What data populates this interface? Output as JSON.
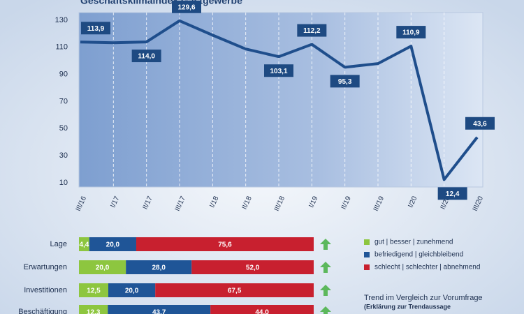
{
  "chart_data": [
    {
      "type": "line",
      "title": "Geschäftsklimaindex Gastgewerbe",
      "categories": [
        "III/16",
        "I/17",
        "II/17",
        "III/17",
        "I/18",
        "II/18",
        "III/18",
        "I/19",
        "II/19",
        "III/19",
        "I/20",
        "II/20",
        "III/20"
      ],
      "values": [
        113.9,
        113.4,
        114.0,
        129.6,
        119,
        108.8,
        103.1,
        112.2,
        95.3,
        98.0,
        110.9,
        12.4,
        43.6
      ],
      "value_labels": [
        "113,9",
        null,
        "114,0",
        "129,6",
        null,
        null,
        "103,1",
        "112,2",
        "95,3",
        null,
        "110,9",
        "12,4",
        "43,6"
      ],
      "color": "#1f4e8c",
      "ylim": [
        10,
        130
      ],
      "yticks": [
        10,
        30,
        50,
        70,
        90,
        110,
        130
      ],
      "grid": true
    },
    {
      "type": "stacked-bar",
      "categories": [
        "Lage",
        "Erwartungen",
        "Investitionen",
        "Beschäftigung"
      ],
      "series": [
        {
          "name": "gut | besser | zunehmend",
          "color": "#8dc63f",
          "values": [
            4.4,
            20.0,
            12.5,
            12.3
          ],
          "value_labels": [
            "4,4",
            "20,0",
            "12,5",
            "12,3"
          ]
        },
        {
          "name": "befriedigend | gleichbleibend",
          "color": "#1f5597",
          "values": [
            20.0,
            28.0,
            20.0,
            43.7
          ],
          "value_labels": [
            "20,0",
            "28,0",
            "20,0",
            "43,7"
          ]
        },
        {
          "name": "schlecht | schlechter | abnehmend",
          "color": "#c8202f",
          "values": [
            75.6,
            52.0,
            67.5,
            44.0
          ],
          "value_labels": [
            "75,6",
            "52,0",
            "67,5",
            "44,0"
          ]
        }
      ],
      "xlim": [
        0,
        100
      ],
      "trend_label": "Trend im Vergleich zur Vorumfrage",
      "trend_note": "(Erklärung zur Trendaussage"
    }
  ]
}
